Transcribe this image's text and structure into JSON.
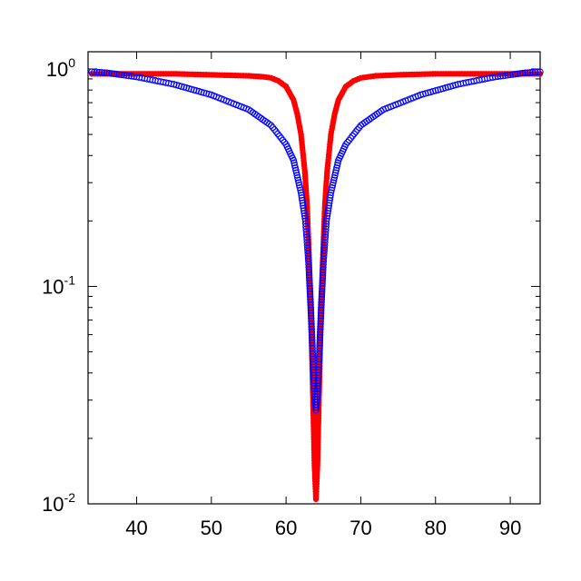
{
  "chart_data": {
    "type": "scatter",
    "xlim": [
      33.5,
      94
    ],
    "ylim": [
      0.01,
      1.2
    ],
    "yscale": "log",
    "grid": false,
    "x_ticks": [
      {
        "value": 40,
        "label": "40"
      },
      {
        "value": 50,
        "label": "50"
      },
      {
        "value": 60,
        "label": "60"
      },
      {
        "value": 70,
        "label": "70"
      },
      {
        "value": 80,
        "label": "80"
      },
      {
        "value": 90,
        "label": "90"
      }
    ],
    "y_ticks": [
      {
        "value": 1,
        "base": "10",
        "exp": "0"
      },
      {
        "value": 0.1,
        "base": "10",
        "exp": "-1"
      },
      {
        "value": 0.01,
        "base": "10",
        "exp": "-2"
      }
    ],
    "series": [
      {
        "marker": "filled-circle",
        "color": "#ff0000",
        "points": [
          [
            34,
            0.95
          ],
          [
            40,
            0.95
          ],
          [
            45,
            0.95
          ],
          [
            50,
            0.94
          ],
          [
            55,
            0.93
          ],
          [
            57,
            0.92
          ],
          [
            58,
            0.91
          ],
          [
            59,
            0.88
          ],
          [
            60,
            0.83
          ],
          [
            61,
            0.72
          ],
          [
            61.5,
            0.62
          ],
          [
            62,
            0.5
          ],
          [
            62.5,
            0.34
          ],
          [
            62.8,
            0.24
          ],
          [
            63,
            0.16
          ],
          [
            63.2,
            0.1
          ],
          [
            63.4,
            0.06
          ],
          [
            63.6,
            0.03
          ],
          [
            63.8,
            0.015
          ],
          [
            64,
            0.0105
          ],
          [
            64.2,
            0.015
          ],
          [
            64.4,
            0.03
          ],
          [
            64.6,
            0.06
          ],
          [
            64.8,
            0.1
          ],
          [
            65,
            0.16
          ],
          [
            65.2,
            0.24
          ],
          [
            65.5,
            0.34
          ],
          [
            66,
            0.5
          ],
          [
            66.5,
            0.62
          ],
          [
            67,
            0.72
          ],
          [
            68,
            0.83
          ],
          [
            69,
            0.88
          ],
          [
            70,
            0.91
          ],
          [
            72,
            0.93
          ],
          [
            75,
            0.94
          ],
          [
            80,
            0.95
          ],
          [
            85,
            0.95
          ],
          [
            90,
            0.95
          ],
          [
            94,
            0.95
          ]
        ]
      },
      {
        "marker": "open-circle",
        "color": "#0000ff",
        "points": [
          [
            34,
            0.97
          ],
          [
            36,
            0.96
          ],
          [
            40,
            0.92
          ],
          [
            45,
            0.85
          ],
          [
            50,
            0.76
          ],
          [
            55,
            0.65
          ],
          [
            58,
            0.55
          ],
          [
            60,
            0.45
          ],
          [
            61,
            0.38
          ],
          [
            62,
            0.27
          ],
          [
            62.6,
            0.2
          ],
          [
            63,
            0.13
          ],
          [
            63.3,
            0.08
          ],
          [
            63.6,
            0.045
          ],
          [
            63.8,
            0.032
          ],
          [
            64,
            0.027
          ],
          [
            64.2,
            0.032
          ],
          [
            64.4,
            0.045
          ],
          [
            64.7,
            0.08
          ],
          [
            65,
            0.13
          ],
          [
            65.4,
            0.2
          ],
          [
            66,
            0.27
          ],
          [
            67,
            0.38
          ],
          [
            68,
            0.45
          ],
          [
            70,
            0.55
          ],
          [
            73,
            0.65
          ],
          [
            78,
            0.76
          ],
          [
            83,
            0.85
          ],
          [
            88,
            0.92
          ],
          [
            92,
            0.96
          ],
          [
            94,
            0.97
          ]
        ]
      }
    ]
  }
}
